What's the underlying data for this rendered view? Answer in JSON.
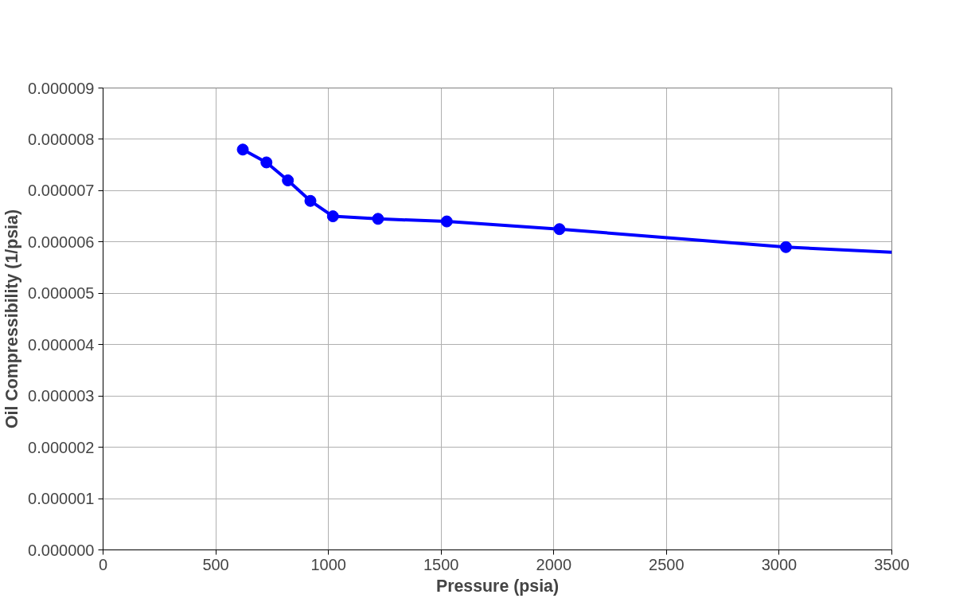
{
  "chart_data": {
    "type": "line",
    "xlabel": "Pressure (psia)",
    "ylabel": "Oil Compressibility (1/psia)",
    "xlim": [
      0,
      3500
    ],
    "xticks": [
      0,
      500,
      1000,
      1500,
      2000,
      2500,
      3000,
      3500
    ],
    "ylim": [
      0,
      9e-06
    ],
    "yticks": [
      {
        "value": 0,
        "label": "0.000000"
      },
      {
        "value": 1e-06,
        "label": "0.000001"
      },
      {
        "value": 2e-06,
        "label": "0.000002"
      },
      {
        "value": 3e-06,
        "label": "0.000003"
      },
      {
        "value": 4e-06,
        "label": "0.000004"
      },
      {
        "value": 5e-06,
        "label": "0.000005"
      },
      {
        "value": 6e-06,
        "label": "0.000006"
      },
      {
        "value": 7e-06,
        "label": "0.000007"
      },
      {
        "value": 8e-06,
        "label": "0.000008"
      },
      {
        "value": 9e-06,
        "label": "0.000009"
      }
    ],
    "grid": true,
    "line_style": "solid",
    "series": [
      {
        "color": "#0000ff",
        "marker": "circle",
        "x": [
          620,
          725,
          820,
          920,
          1020,
          1220,
          1525,
          2025,
          3030
        ],
        "values": [
          7.8e-06,
          7.55e-06,
          7.2e-06,
          6.8e-06,
          6.5e-06,
          6.45e-06,
          6.4e-06,
          6.25e-06,
          5.9e-06
        ]
      },
      {
        "color": "#0000ff",
        "marker": "none",
        "x": [
          3030,
          3500
        ],
        "values": [
          5.9e-06,
          5.8e-06
        ]
      }
    ]
  }
}
